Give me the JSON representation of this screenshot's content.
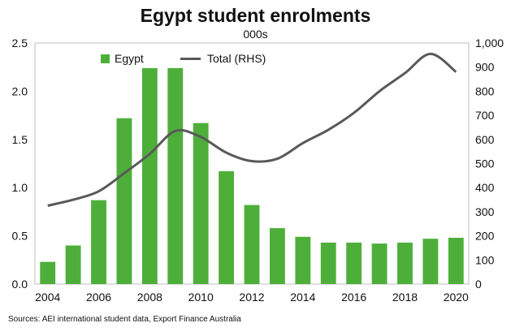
{
  "chart_data": {
    "type": "bar",
    "title": "Egypt student enrolments",
    "subtitle": "000s",
    "x": [
      2004,
      2005,
      2006,
      2007,
      2008,
      2009,
      2010,
      2011,
      2012,
      2013,
      2014,
      2015,
      2016,
      2017,
      2018,
      2019,
      2020
    ],
    "x_tick_labels": [
      "2004",
      "2006",
      "2008",
      "2010",
      "2012",
      "2014",
      "2016",
      "2018",
      "2020"
    ],
    "y_left": {
      "ylim": [
        0,
        2.5
      ],
      "ticks": [
        "0.0",
        "0.5",
        "1.0",
        "1.5",
        "2.0",
        "2.5"
      ]
    },
    "y_right": {
      "ylim": [
        0,
        1000
      ],
      "ticks": [
        "0",
        "100",
        "200",
        "300",
        "400",
        "500",
        "600",
        "700",
        "800",
        "900",
        "1,000"
      ]
    },
    "series": [
      {
        "name": "Egypt",
        "type": "bar",
        "axis": "left",
        "color": "#4daf3a",
        "values": [
          0.23,
          0.4,
          0.87,
          1.72,
          2.24,
          2.24,
          1.67,
          1.17,
          0.82,
          0.58,
          0.49,
          0.43,
          0.43,
          0.42,
          0.43,
          0.47,
          0.48
        ]
      },
      {
        "name": "Total (RHS)",
        "type": "line",
        "axis": "right",
        "color": "#595959",
        "values": [
          325,
          350,
          385,
          460,
          540,
          635,
          610,
          545,
          510,
          520,
          585,
          640,
          710,
          800,
          875,
          955,
          880
        ]
      }
    ],
    "legend": "top-left",
    "grid": false,
    "source": "Sources: AEI international student data, Export Finance Australia"
  }
}
